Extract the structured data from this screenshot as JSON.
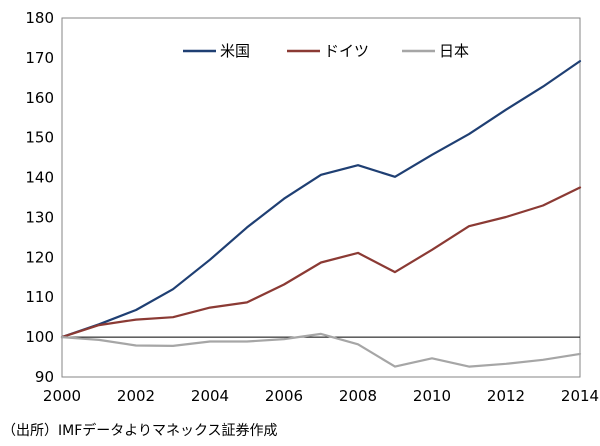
{
  "chart_data": {
    "type": "line",
    "title": "",
    "xlabel": "",
    "ylabel": "",
    "x": [
      2000,
      2001,
      2002,
      2003,
      2004,
      2005,
      2006,
      2007,
      2008,
      2009,
      2010,
      2011,
      2012,
      2013,
      2014
    ],
    "x_ticks": [
      "2000",
      "2002",
      "2004",
      "2006",
      "2008",
      "2010",
      "2012",
      "2014"
    ],
    "xlim": [
      2000,
      2014
    ],
    "y_ticks": [
      "90",
      "100",
      "110",
      "120",
      "130",
      "140",
      "150",
      "160",
      "170",
      "180"
    ],
    "ylim": [
      90,
      180
    ],
    "reference_line": 100,
    "grid": false,
    "legend_position": "top",
    "series": [
      {
        "name": "米国",
        "color": "#1f3f73",
        "values": [
          100,
          103.2,
          106.8,
          112,
          119.4,
          127.5,
          134.7,
          140.7,
          143.1,
          140.2,
          145.7,
          150.9,
          157,
          162.8,
          169.2
        ]
      },
      {
        "name": "ドイツ",
        "color": "#8b3a34",
        "values": [
          100,
          103,
          104.4,
          105,
          107.4,
          108.7,
          113.2,
          118.7,
          121.1,
          116.3,
          121.9,
          127.8,
          130.1,
          133,
          137.5
        ]
      },
      {
        "name": "日本",
        "color": "#a6a6a6",
        "values": [
          100,
          99.3,
          97.9,
          97.8,
          98.9,
          98.9,
          99.5,
          100.8,
          98.2,
          92.6,
          94.7,
          92.6,
          93.3,
          94.3,
          95.8
        ]
      }
    ]
  },
  "source_note": "（出所）IMFデータよりマネックス証券作成"
}
